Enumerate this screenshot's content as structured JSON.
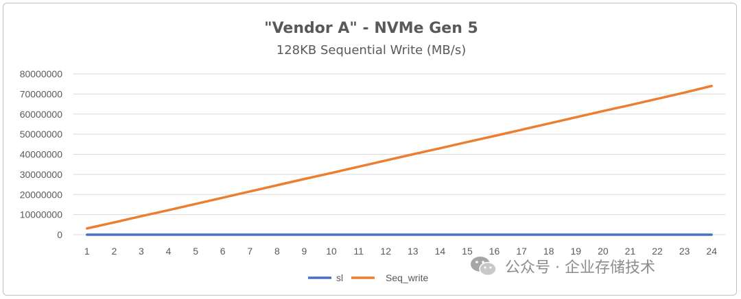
{
  "chart_data": {
    "type": "line",
    "title": "\"Vendor A\" - NVMe Gen 5",
    "subtitle": "128KB Sequential  Write (MB/s)",
    "xlabel": "",
    "ylabel": "",
    "x": [
      1,
      2,
      3,
      4,
      5,
      6,
      7,
      8,
      9,
      10,
      11,
      12,
      13,
      14,
      15,
      16,
      17,
      18,
      19,
      20,
      21,
      22,
      23,
      24
    ],
    "ylim": [
      0,
      80000000
    ],
    "yticks": [
      0,
      10000000,
      20000000,
      30000000,
      40000000,
      50000000,
      60000000,
      70000000,
      80000000
    ],
    "grid": true,
    "legend_position": "bottom",
    "series": [
      {
        "name": "sl",
        "color": "#4472C4",
        "values": [
          0,
          0,
          0,
          0,
          0,
          0,
          0,
          0,
          0,
          0,
          0,
          0,
          0,
          0,
          0,
          0,
          0,
          0,
          0,
          0,
          0,
          0,
          0,
          0
        ]
      },
      {
        "name": "Seq_write",
        "color": "#ED7D31",
        "values": [
          3100000,
          6100000,
          9200000,
          12200000,
          15300000,
          18400000,
          21500000,
          24600000,
          27700000,
          30700000,
          33800000,
          36900000,
          40000000,
          43000000,
          46100000,
          49100000,
          52200000,
          55300000,
          58400000,
          61500000,
          64500000,
          67600000,
          70700000,
          74000000
        ]
      }
    ]
  },
  "watermark": {
    "text": "公众号 · 企业存储技术",
    "icon": "wechat-icon"
  }
}
